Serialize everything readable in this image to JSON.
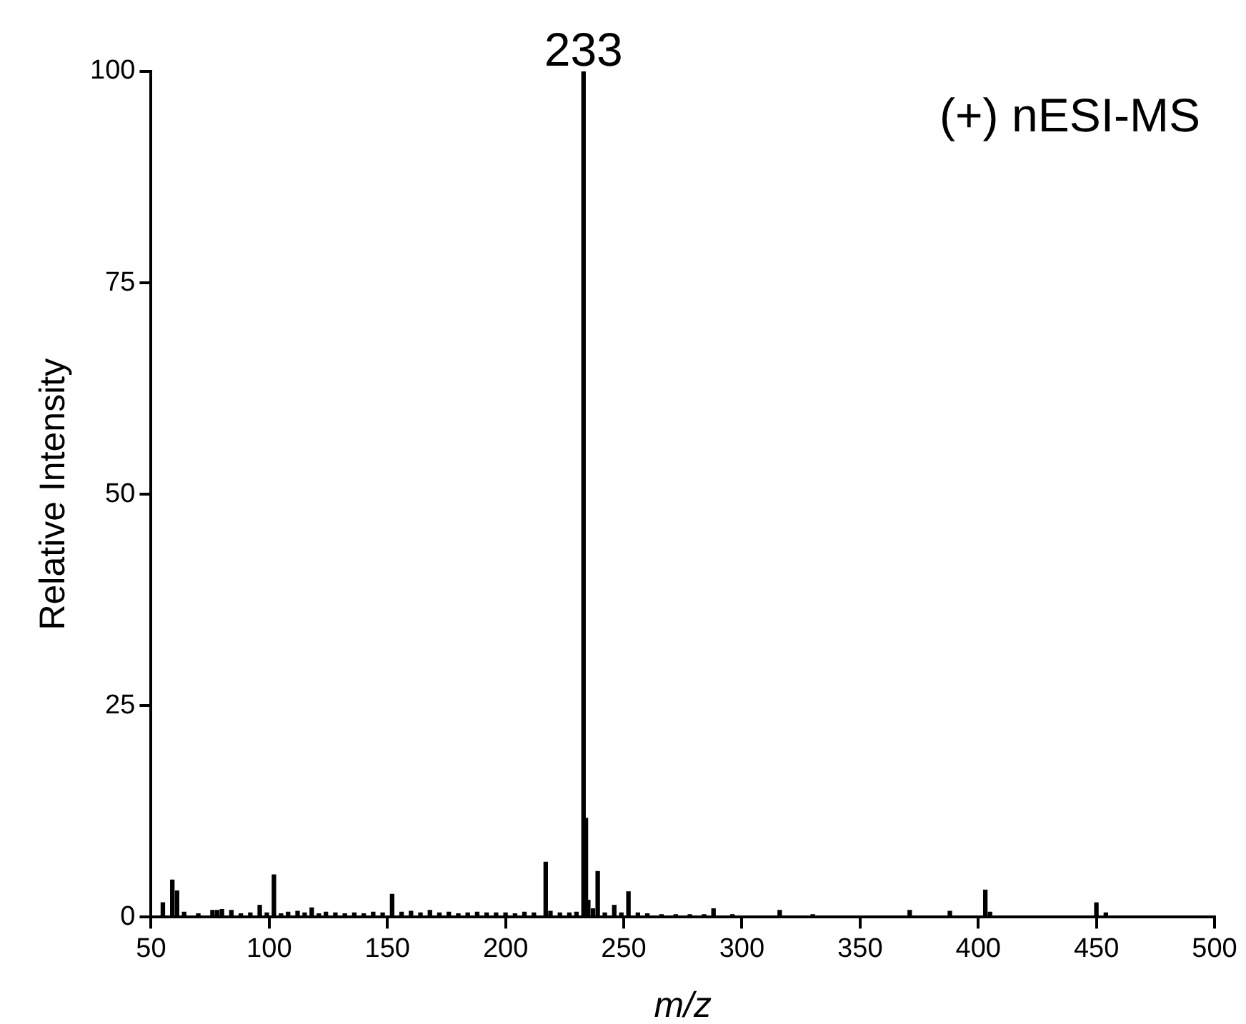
{
  "chart_data": {
    "type": "bar",
    "xlabel": "m/z",
    "ylabel": "Relative Intensity",
    "annotations": [
      {
        "text": "233",
        "x": 233,
        "y": 100
      },
      "(+) nESI-MS"
    ],
    "x": [
      55,
      59,
      61,
      64,
      70,
      76,
      78,
      80,
      84,
      88,
      92,
      96,
      99,
      102,
      105,
      108,
      112,
      115,
      118,
      121,
      124,
      128,
      132,
      136,
      140,
      144,
      148,
      152,
      156,
      160,
      164,
      168,
      172,
      176,
      180,
      184,
      188,
      192,
      196,
      200,
      204,
      208,
      212,
      217,
      219,
      223,
      227,
      230,
      233,
      234,
      235,
      237,
      239,
      242,
      246,
      249,
      252,
      256,
      260,
      266,
      272,
      278,
      284,
      288,
      296,
      316,
      330,
      371,
      388,
      403,
      405,
      450,
      454
    ],
    "values": [
      1.7,
      4.4,
      3.1,
      0.6,
      0.4,
      0.8,
      0.8,
      0.9,
      0.8,
      0.4,
      0.5,
      1.4,
      0.5,
      5.0,
      0.4,
      0.6,
      0.7,
      0.5,
      1.1,
      0.4,
      0.6,
      0.5,
      0.4,
      0.5,
      0.4,
      0.6,
      0.5,
      2.7,
      0.6,
      0.7,
      0.5,
      0.8,
      0.5,
      0.6,
      0.4,
      0.5,
      0.6,
      0.5,
      0.5,
      0.5,
      0.4,
      0.6,
      0.5,
      6.5,
      0.7,
      0.5,
      0.5,
      0.6,
      100,
      11.7,
      2.0,
      1.0,
      5.4,
      0.5,
      1.4,
      0.5,
      3.0,
      0.5,
      0.4,
      0.3,
      0.3,
      0.3,
      0.3,
      1.0,
      0.3,
      0.8,
      0.3,
      0.8,
      0.7,
      3.2,
      0.6,
      1.7,
      0.5
    ],
    "color": "#000000",
    "xlim": [
      50,
      500
    ],
    "xticks": [
      50,
      100,
      150,
      200,
      250,
      300,
      350,
      400,
      450,
      500
    ],
    "ylim": [
      0,
      100
    ],
    "yticks": [
      0,
      25,
      50,
      75,
      100
    ]
  }
}
